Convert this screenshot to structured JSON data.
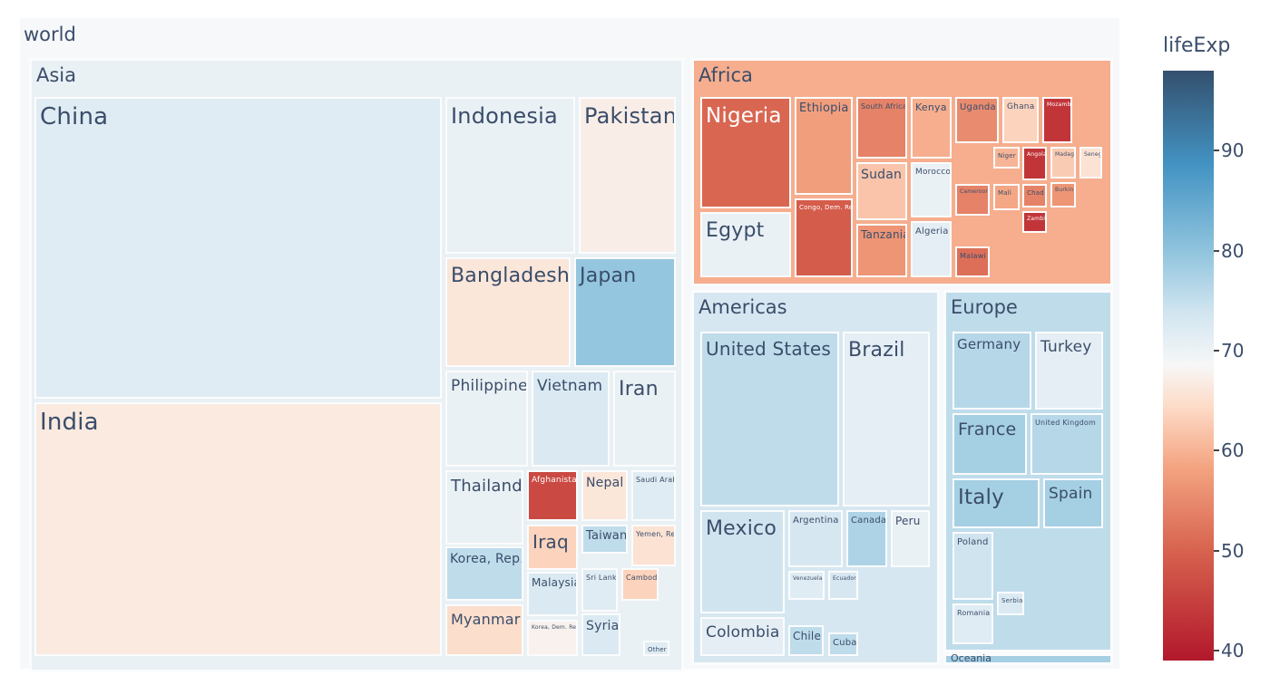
{
  "chart_data": {
    "type": "treemap",
    "root_label": "world",
    "color_metric": "lifeExp",
    "colorscale": [
      "#b2182b",
      "#d6604d",
      "#f4a582",
      "#fddbc7",
      "#f7f7f7",
      "#d1e5f0",
      "#92c5de",
      "#4393c3",
      "#34506e"
    ],
    "color_range": [
      39,
      98
    ],
    "colorbar": {
      "title": "lifeExp",
      "ticks": [
        40,
        50,
        60,
        70,
        80,
        90
      ]
    },
    "continents": [
      {
        "name": "Asia",
        "lifeExp": 71,
        "children": [
          {
            "name": "China",
            "lifeExp": 73
          },
          {
            "name": "India",
            "lifeExp": 65
          },
          {
            "name": "Indonesia",
            "lifeExp": 71
          },
          {
            "name": "Pakistan",
            "lifeExp": 66
          },
          {
            "name": "Bangladesh",
            "lifeExp": 64
          },
          {
            "name": "Japan",
            "lifeExp": 83
          },
          {
            "name": "Philippines",
            "lifeExp": 71
          },
          {
            "name": "Vietnam",
            "lifeExp": 74
          },
          {
            "name": "Iran",
            "lifeExp": 71
          },
          {
            "name": "Thailand",
            "lifeExp": 71
          },
          {
            "name": "Afghanistan",
            "lifeExp": 44
          },
          {
            "name": "Nepal",
            "lifeExp": 64
          },
          {
            "name": "Saudi Arabia",
            "lifeExp": 73
          },
          {
            "name": "Korea, Rep.",
            "lifeExp": 78
          },
          {
            "name": "Iraq",
            "lifeExp": 60
          },
          {
            "name": "Taiwan",
            "lifeExp": 78
          },
          {
            "name": "Yemen, Rep.",
            "lifeExp": 63
          },
          {
            "name": "Malaysia",
            "lifeExp": 74
          },
          {
            "name": "Sri Lanka",
            "lifeExp": 73
          },
          {
            "name": "Cambodia",
            "lifeExp": 60
          },
          {
            "name": "Myanmar",
            "lifeExp": 62
          },
          {
            "name": "Korea, Dem. Rep.",
            "lifeExp": 67
          },
          {
            "name": "Syria",
            "lifeExp": 74
          },
          {
            "name": "Other",
            "lifeExp": 73
          }
        ]
      },
      {
        "name": "Africa",
        "lifeExp": 55,
        "children": [
          {
            "name": "Nigeria",
            "lifeExp": 47
          },
          {
            "name": "Egypt",
            "lifeExp": 71
          },
          {
            "name": "Ethiopia",
            "lifeExp": 53
          },
          {
            "name": "Congo, Dem. Rep.",
            "lifeExp": 46
          },
          {
            "name": "South Africa",
            "lifeExp": 50
          },
          {
            "name": "Sudan",
            "lifeExp": 58
          },
          {
            "name": "Tanzania",
            "lifeExp": 52
          },
          {
            "name": "Kenya",
            "lifeExp": 55
          },
          {
            "name": "Morocco",
            "lifeExp": 71
          },
          {
            "name": "Algeria",
            "lifeExp": 72
          },
          {
            "name": "Uganda",
            "lifeExp": 51
          },
          {
            "name": "Ghana",
            "lifeExp": 60
          },
          {
            "name": "Mozambique",
            "lifeExp": 42
          },
          {
            "name": "Niger",
            "lifeExp": 56
          },
          {
            "name": "Cameroon",
            "lifeExp": 50
          },
          {
            "name": "Mali",
            "lifeExp": 54
          },
          {
            "name": "Malawi",
            "lifeExp": 48
          },
          {
            "name": "Chad",
            "lifeExp": 50
          },
          {
            "name": "Angola",
            "lifeExp": 42
          },
          {
            "name": "Madagascar",
            "lifeExp": 59
          },
          {
            "name": "Senegal",
            "lifeExp": 63
          },
          {
            "name": "Burkina Faso",
            "lifeExp": 52
          },
          {
            "name": "Zambia",
            "lifeExp": 42
          }
        ]
      },
      {
        "name": "Americas",
        "lifeExp": 75,
        "children": [
          {
            "name": "United States",
            "lifeExp": 78
          },
          {
            "name": "Brazil",
            "lifeExp": 72
          },
          {
            "name": "Mexico",
            "lifeExp": 76
          },
          {
            "name": "Colombia",
            "lifeExp": 72
          },
          {
            "name": "Argentina",
            "lifeExp": 75
          },
          {
            "name": "Canada",
            "lifeExp": 80
          },
          {
            "name": "Peru",
            "lifeExp": 71
          },
          {
            "name": "Venezuela",
            "lifeExp": 73
          },
          {
            "name": "Ecuador",
            "lifeExp": 75
          },
          {
            "name": "Chile",
            "lifeExp": 78
          },
          {
            "name": "Cuba",
            "lifeExp": 78
          }
        ]
      },
      {
        "name": "Europe",
        "lifeExp": 78,
        "children": [
          {
            "name": "Germany",
            "lifeExp": 79
          },
          {
            "name": "Turkey",
            "lifeExp": 72
          },
          {
            "name": "France",
            "lifeExp": 81
          },
          {
            "name": "United Kingdom",
            "lifeExp": 79
          },
          {
            "name": "Italy",
            "lifeExp": 81
          },
          {
            "name": "Spain",
            "lifeExp": 81
          },
          {
            "name": "Poland",
            "lifeExp": 76
          },
          {
            "name": "Romania",
            "lifeExp": 73
          },
          {
            "name": "Serbia",
            "lifeExp": 74
          }
        ]
      },
      {
        "name": "Oceania",
        "lifeExp": 81,
        "children": []
      }
    ]
  }
}
